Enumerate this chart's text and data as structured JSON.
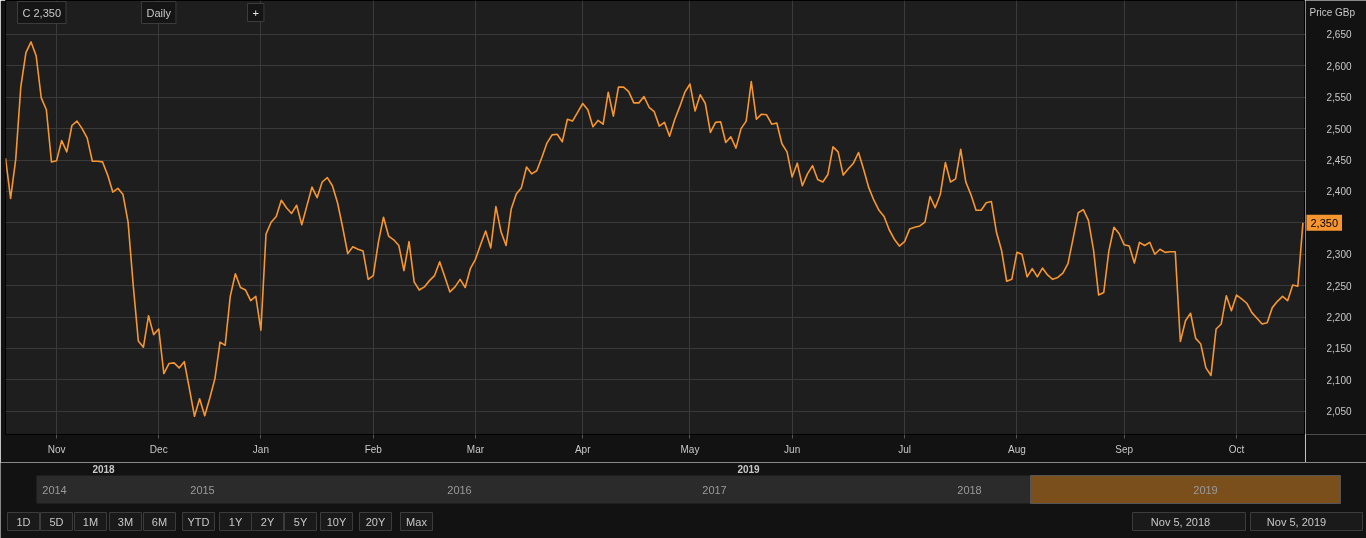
{
  "chart_data": {
    "type": "line",
    "ylabel": "Price GBp",
    "grid": true,
    "line_style": "solid",
    "ylim": [
      2013,
      2704
    ],
    "categories": [
      null,
      null,
      null,
      null,
      null,
      null,
      null,
      null,
      null,
      null,
      "Nov",
      null,
      null,
      null,
      null,
      null,
      null,
      null,
      null,
      null,
      null,
      null,
      null,
      null,
      null,
      null,
      null,
      null,
      null,
      null,
      "Dec",
      null,
      null,
      null,
      null,
      null,
      null,
      null,
      null,
      null,
      null,
      null,
      null,
      null,
      null,
      null,
      null,
      null,
      null,
      null,
      "Jan",
      null,
      null,
      null,
      null,
      null,
      null,
      null,
      null,
      null,
      null,
      null,
      null,
      null,
      null,
      null,
      null,
      null,
      null,
      null,
      null,
      null,
      "Feb",
      null,
      null,
      null,
      null,
      null,
      null,
      null,
      null,
      null,
      null,
      null,
      null,
      null,
      null,
      null,
      null,
      null,
      null,
      null,
      "Mar",
      null,
      null,
      null,
      null,
      null,
      null,
      null,
      null,
      null,
      null,
      null,
      null,
      null,
      null,
      null,
      null,
      null,
      null,
      null,
      null,
      "Apr",
      null,
      null,
      null,
      null,
      null,
      null,
      null,
      null,
      null,
      null,
      null,
      null,
      null,
      null,
      null,
      null,
      null,
      null,
      null,
      null,
      "May",
      null,
      null,
      null,
      null,
      null,
      null,
      null,
      null,
      null,
      null,
      null,
      null,
      null,
      null,
      null,
      null,
      null,
      null,
      null,
      "Jun",
      null,
      null,
      null,
      null,
      null,
      null,
      null,
      null,
      null,
      null,
      null,
      null,
      null,
      null,
      null,
      null,
      null,
      null,
      null,
      null,
      null,
      "Jul",
      null,
      null,
      null,
      null,
      null,
      null,
      null,
      null,
      null,
      null,
      null,
      null,
      null,
      null,
      null,
      null,
      null,
      null,
      null,
      null,
      null,
      "Aug",
      null,
      null,
      null,
      null,
      null,
      null,
      null,
      null,
      null,
      null,
      null,
      null,
      null,
      null,
      null,
      null,
      null,
      null,
      null,
      null,
      "Sep",
      null,
      null,
      null,
      null,
      null,
      null,
      null,
      null,
      null,
      null,
      null,
      null,
      null,
      null,
      null,
      null,
      null,
      null,
      null,
      null,
      null,
      "Oct",
      null,
      null,
      null,
      null,
      null,
      null,
      null,
      null,
      null,
      null,
      null,
      null,
      null
    ],
    "yticks": [
      {
        "value": 2050,
        "label": "2,050"
      },
      {
        "value": 2100,
        "label": "2,100"
      },
      {
        "value": 2150,
        "label": "2,150"
      },
      {
        "value": 2200,
        "label": "2,200"
      },
      {
        "value": 2250,
        "label": "2,250"
      },
      {
        "value": 2300,
        "label": "2,300"
      },
      {
        "value": 2350,
        "label": null
      },
      {
        "value": 2400,
        "label": "2,400"
      },
      {
        "value": 2450,
        "label": "2,450"
      },
      {
        "value": 2500,
        "label": "2,500"
      },
      {
        "value": 2550,
        "label": "2,550"
      },
      {
        "value": 2600,
        "label": "2,600"
      },
      {
        "value": 2650,
        "label": "2,650"
      }
    ],
    "annotations": [
      "C 2,350",
      "Daily",
      "+",
      "2018",
      "2019",
      "2014",
      "2015",
      "2016",
      "2017",
      "2018",
      "2019",
      "1D",
      "5D",
      "1M",
      "3M",
      "6M",
      "YTD",
      "1Y",
      "2Y",
      "5Y",
      "10Y",
      "20Y",
      "Max",
      "Nov 5, 2018",
      "Nov 5, 2019"
    ],
    "series": [
      {
        "color": "#f7962f",
        "values": [
          2453,
          2389,
          2451,
          2567,
          2621,
          2638,
          2616,
          2549,
          2530,
          2447,
          2449,
          2481,
          2463,
          2505,
          2512,
          2500,
          2485,
          2448,
          2448,
          2447,
          2426,
          2399,
          2405,
          2395,
          2351,
          2251,
          2162,
          2152,
          2202,
          2172,
          2181,
          2110,
          2126,
          2127,
          2119,
          2129,
          2086,
          2042,
          2070,
          2043,
          2071,
          2102,
          2160,
          2155,
          2233,
          2269,
          2247,
          2243,
          2226,
          2233,
          2179,
          2332,
          2351,
          2360,
          2386,
          2374,
          2365,
          2378,
          2347,
          2377,
          2407,
          2390,
          2415,
          2422,
          2409,
          2382,
          2343,
          2301,
          2312,
          2308,
          2305,
          2260,
          2266,
          2319,
          2359,
          2329,
          2323,
          2314,
          2274,
          2320,
          2256,
          2243,
          2248,
          2258,
          2266,
          2288,
          2264,
          2240,
          2248,
          2260,
          2247,
          2277,
          2292,
          2315,
          2337,
          2310,
          2376,
          2336,
          2314,
          2372,
          2396,
          2406,
          2439,
          2428,
          2433,
          2454,
          2477,
          2490,
          2491,
          2479,
          2515,
          2512,
          2526,
          2540,
          2530,
          2503,
          2513,
          2507,
          2558,
          2520,
          2566,
          2566,
          2559,
          2541,
          2541,
          2551,
          2534,
          2527,
          2504,
          2510,
          2488,
          2514,
          2535,
          2558,
          2571,
          2528,
          2554,
          2540,
          2494,
          2510,
          2511,
          2478,
          2487,
          2469,
          2500,
          2512,
          2575,
          2515,
          2523,
          2522,
          2507,
          2509,
          2476,
          2463,
          2423,
          2445,
          2409,
          2428,
          2441,
          2419,
          2415,
          2427,
          2471,
          2463,
          2426,
          2436,
          2445,
          2462,
          2435,
          2406,
          2386,
          2370,
          2360,
          2339,
          2324,
          2313,
          2320,
          2340,
          2343,
          2345,
          2351,
          2392,
          2374,
          2395,
          2446,
          2415,
          2420,
          2467,
          2415,
          2395,
          2370,
          2370,
          2382,
          2384,
          2335,
          2306,
          2257,
          2260,
          2303,
          2300,
          2264,
          2277,
          2264,
          2278,
          2267,
          2260,
          2263,
          2270,
          2285,
          2325,
          2366,
          2371,
          2354,
          2307,
          2235,
          2239,
          2305,
          2343,
          2333,
          2315,
          2313,
          2286,
          2319,
          2314,
          2319,
          2300,
          2308,
          2303,
          2304,
          2304,
          2161,
          2194,
          2206,
          2166,
          2157,
          2119,
          2107,
          2181,
          2189,
          2234,
          2210,
          2235,
          2229,
          2222,
          2207,
          2198,
          2189,
          2191,
          2215,
          2225,
          2233,
          2226,
          2251,
          2249,
          2350
        ],
        "value_labels": [
          null,
          null,
          null,
          null,
          null,
          null,
          null,
          null,
          null,
          null,
          null,
          null,
          null,
          null,
          null,
          null,
          null,
          null,
          null,
          null,
          null,
          null,
          null,
          null,
          null,
          null,
          null,
          null,
          null,
          null,
          null,
          null,
          null,
          null,
          null,
          null,
          null,
          null,
          null,
          null,
          null,
          null,
          null,
          null,
          null,
          null,
          null,
          null,
          null,
          null,
          null,
          null,
          null,
          null,
          null,
          null,
          null,
          null,
          null,
          null,
          null,
          null,
          null,
          null,
          null,
          null,
          null,
          null,
          null,
          null,
          null,
          null,
          null,
          null,
          null,
          null,
          null,
          null,
          null,
          null,
          null,
          null,
          null,
          null,
          null,
          null,
          null,
          null,
          null,
          null,
          null,
          null,
          null,
          null,
          null,
          null,
          null,
          null,
          null,
          null,
          null,
          null,
          null,
          null,
          null,
          null,
          null,
          null,
          null,
          null,
          null,
          null,
          null,
          null,
          null,
          null,
          null,
          null,
          null,
          null,
          null,
          null,
          null,
          null,
          null,
          null,
          null,
          null,
          null,
          null,
          null,
          null,
          null,
          null,
          null,
          null,
          null,
          null,
          null,
          null,
          null,
          null,
          null,
          null,
          null,
          null,
          null,
          null,
          null,
          null,
          null,
          null,
          null,
          null,
          null,
          null,
          null,
          null,
          null,
          null,
          null,
          null,
          null,
          null,
          null,
          null,
          null,
          null,
          null,
          null,
          null,
          null,
          null,
          null,
          null,
          null,
          null,
          null,
          null,
          null,
          null,
          null,
          null,
          null,
          null,
          null,
          null,
          null,
          null,
          null,
          null,
          null,
          null,
          null,
          null,
          null,
          null,
          null,
          null,
          null,
          null,
          null,
          null,
          null,
          null,
          null,
          null,
          null,
          null,
          null,
          null,
          null,
          null,
          null,
          null,
          null,
          null,
          null,
          null,
          null,
          null,
          null,
          null,
          null,
          null,
          null,
          null,
          null,
          null,
          null,
          null,
          null,
          null,
          null,
          null,
          null,
          null,
          null,
          null,
          null,
          null,
          null,
          null,
          null,
          null,
          null,
          null,
          null,
          null,
          null,
          null,
          null,
          null,
          null,
          "2,350"
        ]
      }
    ]
  }
}
